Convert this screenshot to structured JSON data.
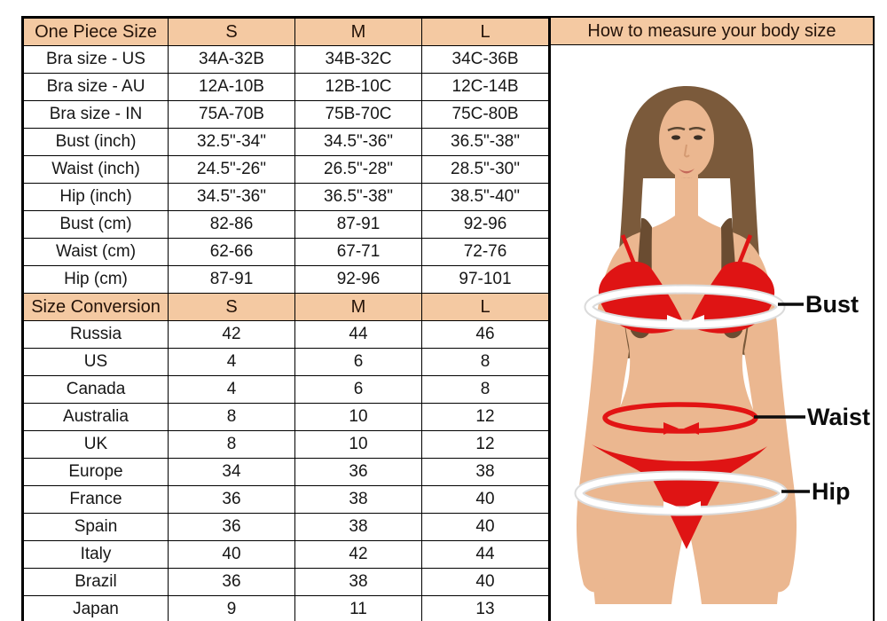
{
  "table": {
    "header": {
      "label": "One Piece Size",
      "columns": [
        "S",
        "M",
        "L"
      ]
    },
    "body_rows": [
      {
        "label": "Bra size - US",
        "values": [
          "34A-32B",
          "34B-32C",
          "34C-36B"
        ]
      },
      {
        "label": "Bra size - AU",
        "values": [
          "12A-10B",
          "12B-10C",
          "12C-14B"
        ]
      },
      {
        "label": "Bra size - IN",
        "values": [
          "75A-70B",
          "75B-70C",
          "75C-80B"
        ]
      },
      {
        "label": "Bust (inch)",
        "values": [
          "32.5\"-34\"",
          "34.5\"-36\"",
          "36.5\"-38\""
        ]
      },
      {
        "label": "Waist (inch)",
        "values": [
          "24.5\"-26\"",
          "26.5\"-28\"",
          "28.5\"-30\""
        ]
      },
      {
        "label": "Hip (inch)",
        "values": [
          "34.5\"-36\"",
          "36.5\"-38\"",
          "38.5\"-40\""
        ]
      },
      {
        "label": "Bust (cm)",
        "values": [
          "82-86",
          "87-91",
          "92-96"
        ]
      },
      {
        "label": "Waist (cm)",
        "values": [
          "62-66",
          "67-71",
          "72-76"
        ]
      },
      {
        "label": "Hip (cm)",
        "values": [
          "87-91",
          "92-96",
          "97-101"
        ]
      }
    ],
    "conversion_header": {
      "label": "Size Conversion",
      "columns": [
        "S",
        "M",
        "L"
      ]
    },
    "conversion_rows": [
      {
        "label": "Russia",
        "values": [
          "42",
          "44",
          "46"
        ]
      },
      {
        "label": "US",
        "values": [
          "4",
          "6",
          "8"
        ]
      },
      {
        "label": "Canada",
        "values": [
          "4",
          "6",
          "8"
        ]
      },
      {
        "label": "Australia",
        "values": [
          "8",
          "10",
          "12"
        ]
      },
      {
        "label": "UK",
        "values": [
          "8",
          "10",
          "12"
        ]
      },
      {
        "label": "Europe",
        "values": [
          "34",
          "36",
          "38"
        ]
      },
      {
        "label": "France",
        "values": [
          "36",
          "38",
          "40"
        ]
      },
      {
        "label": "Spain",
        "values": [
          "36",
          "38",
          "40"
        ]
      },
      {
        "label": "Italy",
        "values": [
          "40",
          "42",
          "44"
        ]
      },
      {
        "label": "Brazil",
        "values": [
          "36",
          "38",
          "40"
        ]
      },
      {
        "label": "Japan",
        "values": [
          "9",
          "11",
          "13"
        ]
      }
    ]
  },
  "measure_panel": {
    "title": "How to measure your body size",
    "labels": {
      "bust": "Bust",
      "waist": "Waist",
      "hip": "Hip"
    }
  },
  "colors": {
    "header_bg": "#F4C9A2",
    "border": "#000000",
    "bikini_red": "#DF1414",
    "skin": "#EBB790",
    "hair": "#7B5A3B",
    "band_white": "#FFFFFF"
  },
  "chart_data": [
    {
      "type": "table",
      "title": "One Piece Size",
      "columns": [
        "One Piece Size",
        "S",
        "M",
        "L"
      ],
      "rows": [
        [
          "Bra size - US",
          "34A-32B",
          "34B-32C",
          "34C-36B"
        ],
        [
          "Bra size - AU",
          "12A-10B",
          "12B-10C",
          "12C-14B"
        ],
        [
          "Bra size - IN",
          "75A-70B",
          "75B-70C",
          "75C-80B"
        ],
        [
          "Bust (inch)",
          "32.5\"-34\"",
          "34.5\"-36\"",
          "36.5\"-38\""
        ],
        [
          "Waist (inch)",
          "24.5\"-26\"",
          "26.5\"-28\"",
          "28.5\"-30\""
        ],
        [
          "Hip (inch)",
          "34.5\"-36\"",
          "36.5\"-38\"",
          "38.5\"-40\""
        ],
        [
          "Bust (cm)",
          "82-86",
          "87-91",
          "92-96"
        ],
        [
          "Waist (cm)",
          "62-66",
          "67-71",
          "72-76"
        ],
        [
          "Hip (cm)",
          "87-91",
          "92-96",
          "97-101"
        ]
      ]
    },
    {
      "type": "table",
      "title": "Size Conversion",
      "columns": [
        "Size Conversion",
        "S",
        "M",
        "L"
      ],
      "rows": [
        [
          "Russia",
          "42",
          "44",
          "46"
        ],
        [
          "US",
          "4",
          "6",
          "8"
        ],
        [
          "Canada",
          "4",
          "6",
          "8"
        ],
        [
          "Australia",
          "8",
          "10",
          "12"
        ],
        [
          "UK",
          "8",
          "10",
          "12"
        ],
        [
          "Europe",
          "34",
          "36",
          "38"
        ],
        [
          "France",
          "36",
          "38",
          "40"
        ],
        [
          "Spain",
          "36",
          "38",
          "40"
        ],
        [
          "Italy",
          "40",
          "42",
          "44"
        ],
        [
          "Brazil",
          "36",
          "38",
          "40"
        ],
        [
          "Japan",
          "9",
          "11",
          "13"
        ]
      ]
    }
  ]
}
